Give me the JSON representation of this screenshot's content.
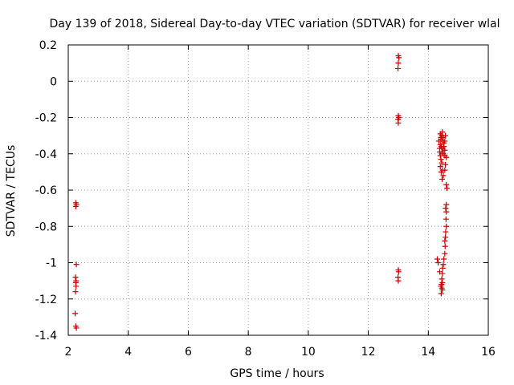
{
  "chart_data": {
    "type": "scatter",
    "title": "Day 139 of 2018, Sidereal Day-to-day VTEC variation (SDTVAR) for receiver wlal",
    "xlabel": "GPS time / hours",
    "ylabel": "SDTVAR / TECUs",
    "xlim": [
      2,
      16
    ],
    "ylim": [
      -1.4,
      0.2
    ],
    "xticks": [
      2,
      4,
      6,
      8,
      10,
      12,
      14,
      16
    ],
    "yticks": [
      0.2,
      0,
      -0.2,
      -0.4,
      -0.6,
      -0.8,
      -1,
      -1.2,
      -1.4
    ],
    "xtick_labels": [
      "2",
      "4",
      "6",
      "8",
      "10",
      "12",
      "14",
      "16"
    ],
    "ytick_labels": [
      "0.2",
      "0",
      "-0.2",
      "-0.4",
      "-0.6",
      "-0.8",
      "-1",
      "-1.2",
      "-1.4"
    ],
    "grid": true,
    "marker": "+",
    "marker_color": "#cc0000",
    "series": [
      {
        "points": [
          [
            2.25,
            -0.67
          ],
          [
            2.25,
            -0.69
          ],
          [
            2.27,
            -0.68
          ],
          [
            2.27,
            -1.01
          ],
          [
            2.24,
            -1.08
          ],
          [
            2.26,
            -1.1
          ],
          [
            2.25,
            -1.11
          ],
          [
            2.26,
            -1.13
          ],
          [
            2.24,
            -1.16
          ],
          [
            2.23,
            -1.28
          ],
          [
            2.25,
            -1.35
          ],
          [
            2.27,
            -1.36
          ],
          [
            13.0,
            0.14
          ],
          [
            13.02,
            0.13
          ],
          [
            13.0,
            0.1
          ],
          [
            12.99,
            0.07
          ],
          [
            13.0,
            -0.19
          ],
          [
            13.02,
            -0.2
          ],
          [
            12.99,
            -0.21
          ],
          [
            13.0,
            -0.23
          ],
          [
            13.0,
            -1.04
          ],
          [
            13.01,
            -1.05
          ],
          [
            12.99,
            -1.08
          ],
          [
            13.0,
            -1.1
          ],
          [
            14.3,
            -0.98
          ],
          [
            14.33,
            -1.0
          ],
          [
            14.38,
            -1.05
          ],
          [
            14.4,
            -0.29
          ],
          [
            14.42,
            -0.31
          ],
          [
            14.35,
            -0.33
          ],
          [
            14.45,
            -0.3
          ],
          [
            14.4,
            -0.35
          ],
          [
            14.38,
            -0.37
          ],
          [
            14.43,
            -0.36
          ],
          [
            14.47,
            -0.33
          ],
          [
            14.5,
            -0.31
          ],
          [
            14.52,
            -0.34
          ],
          [
            14.48,
            -0.37
          ],
          [
            14.45,
            -0.39
          ],
          [
            14.4,
            -0.41
          ],
          [
            14.42,
            -0.43
          ],
          [
            14.5,
            -0.4
          ],
          [
            14.55,
            -0.38
          ],
          [
            14.45,
            -0.45
          ],
          [
            14.4,
            -0.47
          ],
          [
            14.48,
            -0.49
          ],
          [
            14.43,
            -0.5
          ],
          [
            14.5,
            -0.52
          ],
          [
            14.46,
            -0.54
          ],
          [
            14.55,
            -0.41
          ],
          [
            14.6,
            -0.42
          ],
          [
            14.57,
            -0.46
          ],
          [
            14.55,
            -0.49
          ],
          [
            14.52,
            -0.36
          ],
          [
            14.57,
            -0.3
          ],
          [
            14.42,
            -0.32
          ],
          [
            14.47,
            -0.28
          ],
          [
            14.38,
            -0.39
          ],
          [
            14.55,
            -0.33
          ],
          [
            14.6,
            -0.57
          ],
          [
            14.62,
            -0.59
          ],
          [
            14.6,
            -0.68
          ],
          [
            14.58,
            -0.7
          ],
          [
            14.6,
            -0.72
          ],
          [
            14.59,
            -0.76
          ],
          [
            14.6,
            -0.8
          ],
          [
            14.58,
            -0.83
          ],
          [
            14.57,
            -0.86
          ],
          [
            14.55,
            -0.88
          ],
          [
            14.56,
            -0.91
          ],
          [
            14.55,
            -0.95
          ],
          [
            14.52,
            -0.98
          ],
          [
            14.5,
            -1.01
          ],
          [
            14.48,
            -1.03
          ],
          [
            14.47,
            -1.06
          ],
          [
            14.45,
            -1.09
          ],
          [
            14.44,
            -1.12
          ],
          [
            14.42,
            -1.13
          ],
          [
            14.45,
            -1.14
          ],
          [
            14.47,
            -1.15
          ],
          [
            14.43,
            -1.17
          ],
          [
            14.47,
            -1.11
          ]
        ]
      }
    ]
  }
}
